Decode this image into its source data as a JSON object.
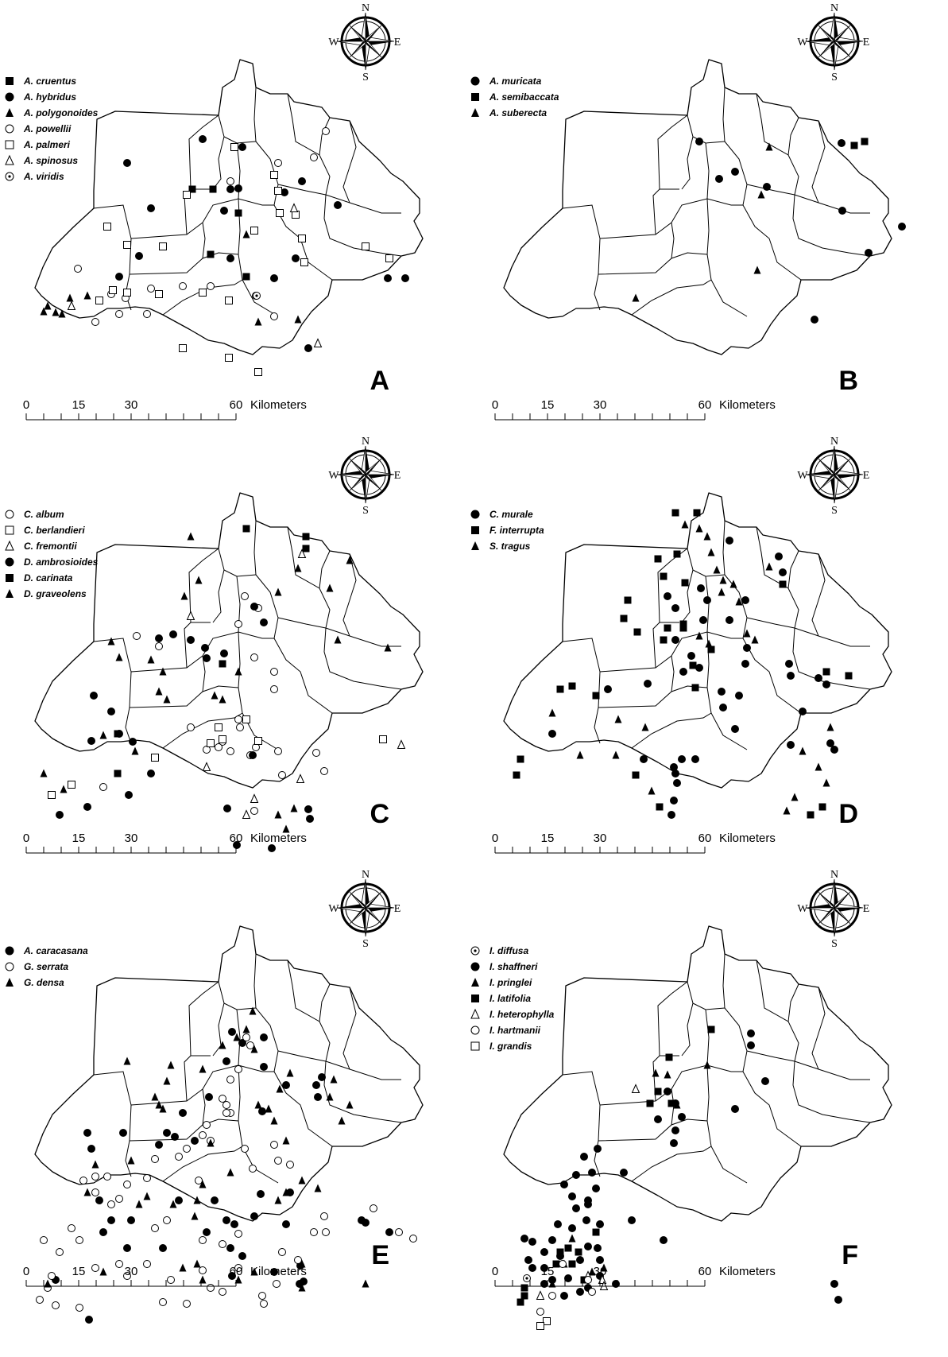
{
  "panels": [
    {
      "letter": "A",
      "legend": [
        {
          "symbol": "square-filled",
          "label": "A. cruentus"
        },
        {
          "symbol": "circle-filled",
          "label": "A. hybridus"
        },
        {
          "symbol": "triangle-filled",
          "label": "A. polygonoides"
        },
        {
          "symbol": "circle-open",
          "label": "A. powellii"
        },
        {
          "symbol": "square-open",
          "label": "A. palmeri"
        },
        {
          "symbol": "triangle-open",
          "label": "A. spinosus"
        },
        {
          "symbol": "circle-dot",
          "label": "A. viridis"
        }
      ]
    },
    {
      "letter": "B",
      "legend": [
        {
          "symbol": "circle-filled",
          "label": "A. muricata"
        },
        {
          "symbol": "square-filled",
          "label": "A. semibaccata"
        },
        {
          "symbol": "triangle-filled",
          "label": "A. suberecta"
        }
      ]
    },
    {
      "letter": "C",
      "legend": [
        {
          "symbol": "circle-open",
          "label": "C. album"
        },
        {
          "symbol": "square-open",
          "label": "C. berlandieri"
        },
        {
          "symbol": "triangle-open",
          "label": "C. fremontii"
        },
        {
          "symbol": "circle-filled",
          "label": "D. ambrosioides"
        },
        {
          "symbol": "square-filled",
          "label": "D. carinata"
        },
        {
          "symbol": "triangle-filled",
          "label": "D. graveolens"
        }
      ]
    },
    {
      "letter": "D",
      "legend": [
        {
          "symbol": "circle-filled",
          "label": "C. murale"
        },
        {
          "symbol": "square-filled",
          "label": "F. interrupta"
        },
        {
          "symbol": "triangle-filled",
          "label": "S. tragus"
        }
      ]
    },
    {
      "letter": "E",
      "legend": [
        {
          "symbol": "circle-filled",
          "label": "A. caracasana"
        },
        {
          "symbol": "circle-open",
          "label": "G. serrata"
        },
        {
          "symbol": "triangle-filled",
          "label": "G. densa"
        }
      ]
    },
    {
      "letter": "F",
      "legend": [
        {
          "symbol": "circle-dot",
          "label": "I. diffusa"
        },
        {
          "symbol": "circle-filled",
          "label": "I. shaffneri"
        },
        {
          "symbol": "triangle-filled",
          "label": "I. pringlei"
        },
        {
          "symbol": "square-filled",
          "label": "I. latifolia"
        },
        {
          "symbol": "triangle-open",
          "label": "I. heterophylla"
        },
        {
          "symbol": "circle-open",
          "label": "I. hartmanii"
        },
        {
          "symbol": "square-open",
          "label": "I. grandis"
        }
      ]
    }
  ],
  "compass": {
    "n": "N",
    "s": "S",
    "e": "E",
    "w": "W"
  },
  "scale_bar": {
    "ticks": [
      "0",
      "15",
      "30",
      "60"
    ],
    "unit": "Kilometers"
  }
}
